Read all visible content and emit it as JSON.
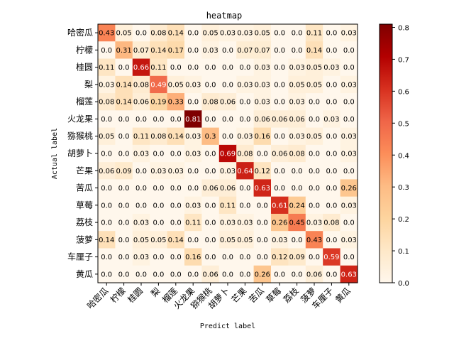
{
  "chart_data": {
    "type": "heatmap",
    "title": "heatmap",
    "xlabel": "Predict label",
    "ylabel": "Actual label",
    "categories": [
      "哈密瓜",
      "柠檬",
      "桂圆",
      "梨",
      "榴莲",
      "火龙果",
      "猕猴桃",
      "胡萝卜",
      "芒果",
      "苦瓜",
      "草莓",
      "荔枝",
      "菠萝",
      "车厘子",
      "黄瓜"
    ],
    "values": [
      [
        0.43,
        0.05,
        0.0,
        0.08,
        0.14,
        0.0,
        0.05,
        0.03,
        0.03,
        0.05,
        0.0,
        0.0,
        0.11,
        0.0,
        0.03
      ],
      [
        0.0,
        0.31,
        0.07,
        0.14,
        0.17,
        0.0,
        0.03,
        0.0,
        0.07,
        0.07,
        0.0,
        0.0,
        0.14,
        0.0,
        0.0
      ],
      [
        0.11,
        0.0,
        0.66,
        0.11,
        0.0,
        0.0,
        0.0,
        0.0,
        0.0,
        0.03,
        0.0,
        0.03,
        0.05,
        0.03,
        0.0
      ],
      [
        0.03,
        0.14,
        0.08,
        0.49,
        0.05,
        0.03,
        0.0,
        0.0,
        0.03,
        0.03,
        0.0,
        0.05,
        0.05,
        0.0,
        0.03
      ],
      [
        0.08,
        0.14,
        0.06,
        0.19,
        0.33,
        0.0,
        0.08,
        0.06,
        0.0,
        0.03,
        0.0,
        0.03,
        0.0,
        0.0,
        0.0
      ],
      [
        0.0,
        0.0,
        0.0,
        0.0,
        0.0,
        0.81,
        0.0,
        0.0,
        0.0,
        0.06,
        0.06,
        0.06,
        0.0,
        0.03,
        0.0
      ],
      [
        0.05,
        0.0,
        0.11,
        0.08,
        0.14,
        0.03,
        0.3,
        0.0,
        0.03,
        0.16,
        0.0,
        0.03,
        0.05,
        0.0,
        0.03
      ],
      [
        0.0,
        0.0,
        0.03,
        0.0,
        0.0,
        0.03,
        0.0,
        0.69,
        0.08,
        0.0,
        0.06,
        0.08,
        0.0,
        0.0,
        0.03
      ],
      [
        0.06,
        0.09,
        0.0,
        0.03,
        0.03,
        0.0,
        0.0,
        0.03,
        0.64,
        0.12,
        0.0,
        0.0,
        0.0,
        0.0,
        0.0
      ],
      [
        0.0,
        0.0,
        0.0,
        0.0,
        0.0,
        0.0,
        0.06,
        0.06,
        0.0,
        0.63,
        0.0,
        0.0,
        0.0,
        0.0,
        0.26
      ],
      [
        0.0,
        0.0,
        0.0,
        0.0,
        0.0,
        0.03,
        0.0,
        0.11,
        0.0,
        0.0,
        0.61,
        0.24,
        0.0,
        0.0,
        0.03
      ],
      [
        0.0,
        0.0,
        0.03,
        0.0,
        0.0,
        0.11,
        0.0,
        0.03,
        0.03,
        0.0,
        0.26,
        0.45,
        0.03,
        0.08,
        0.0
      ],
      [
        0.14,
        0.0,
        0.05,
        0.05,
        0.14,
        0.0,
        0.0,
        0.05,
        0.05,
        0.0,
        0.03,
        0.0,
        0.43,
        0.0,
        0.03
      ],
      [
        0.0,
        0.0,
        0.03,
        0.0,
        0.0,
        0.16,
        0.0,
        0.0,
        0.0,
        0.0,
        0.12,
        0.09,
        0.0,
        0.59,
        0.0
      ],
      [
        0.0,
        0.0,
        0.0,
        0.0,
        0.0,
        0.0,
        0.06,
        0.0,
        0.0,
        0.26,
        0.0,
        0.0,
        0.06,
        0.0,
        0.63
      ]
    ],
    "display": [
      [
        "0.43",
        "0.05",
        "0.0",
        "0.08",
        "0.14",
        "0.0",
        "0.05",
        "0.03",
        "0.03",
        "0.05",
        "0.0",
        "0.0",
        "0.11",
        "0.0",
        "0.03"
      ],
      [
        "0.0",
        "0.31",
        "0.07",
        "0.14",
        "0.17",
        "0.0",
        "0.03",
        "0.0",
        "0.07",
        "0.07",
        "0.0",
        "0.0",
        "0.14",
        "0.0",
        "0.0"
      ],
      [
        "0.11",
        "0.0",
        "0.66",
        "0.11",
        "0.0",
        "0.0",
        "0.0",
        "0.0",
        "0.0",
        "0.03",
        "0.0",
        "0.03",
        "0.05",
        "0.03",
        "0.0"
      ],
      [
        "0.03",
        "0.14",
        "0.08",
        "0.49",
        "0.05",
        "0.03",
        "0.0",
        "0.0",
        "0.03",
        "0.03",
        "0.0",
        "0.05",
        "0.05",
        "0.0",
        "0.03"
      ],
      [
        "0.08",
        "0.14",
        "0.06",
        "0.19",
        "0.33",
        "0.0",
        "0.08",
        "0.06",
        "0.0",
        "0.03",
        "0.0",
        "0.03",
        "0.0",
        "0.0",
        "0.0"
      ],
      [
        "0.0",
        "0.0",
        "0.0",
        "0.0",
        "0.0",
        "0.81",
        "0.0",
        "0.0",
        "0.0",
        "0.06",
        "0.06",
        "0.06",
        "0.0",
        "0.03",
        "0.0"
      ],
      [
        "0.05",
        "0.0",
        "0.11",
        "0.08",
        "0.14",
        "0.03",
        "0.3",
        "0.0",
        "0.03",
        "0.16",
        "0.0",
        "0.03",
        "0.05",
        "0.0",
        "0.03"
      ],
      [
        "0.0",
        "0.0",
        "0.03",
        "0.0",
        "0.0",
        "0.03",
        "0.0",
        "0.69",
        "0.08",
        "0.0",
        "0.06",
        "0.08",
        "0.0",
        "0.0",
        "0.03"
      ],
      [
        "0.06",
        "0.09",
        "0.0",
        "0.03",
        "0.03",
        "0.0",
        "0.0",
        "0.03",
        "0.64",
        "0.12",
        "0.0",
        "0.0",
        "0.0",
        "0.0",
        "0.0"
      ],
      [
        "0.0",
        "0.0",
        "0.0",
        "0.0",
        "0.0",
        "0.0",
        "0.06",
        "0.06",
        "0.0",
        "0.63",
        "0.0",
        "0.0",
        "0.0",
        "0.0",
        "0.26"
      ],
      [
        "0.0",
        "0.0",
        "0.0",
        "0.0",
        "0.0",
        "0.03",
        "0.0",
        "0.11",
        "0.0",
        "0.0",
        "0.61",
        "0.24",
        "0.0",
        "0.0",
        "0.03"
      ],
      [
        "0.0",
        "0.0",
        "0.03",
        "0.0",
        "0.0",
        "0.11",
        "0.0",
        "0.03",
        "0.03",
        "0.0",
        "0.26",
        "0.45",
        "0.03",
        "0.08",
        "0.0"
      ],
      [
        "0.14",
        "0.0",
        "0.05",
        "0.05",
        "0.14",
        "0.0",
        "0.0",
        "0.05",
        "0.05",
        "0.0",
        "0.03",
        "0.0",
        "0.43",
        "0.0",
        "0.03"
      ],
      [
        "0.0",
        "0.0",
        "0.03",
        "0.0",
        "0.0",
        "0.16",
        "0.0",
        "0.0",
        "0.0",
        "0.0",
        "0.12",
        "0.09",
        "0.0",
        "0.59",
        "0.0"
      ],
      [
        "0.0",
        "0.0",
        "0.0",
        "0.0",
        "0.0",
        "0.0",
        "0.06",
        "0.0",
        "0.0",
        "0.26",
        "0.0",
        "0.0",
        "0.06",
        "0.0",
        "0.63"
      ]
    ],
    "colormap": "OrRd",
    "colorbar": {
      "min": 0,
      "max": 0.81,
      "ticks": [
        "0.0",
        "0.1",
        "0.2",
        "0.3",
        "0.4",
        "0.5",
        "0.6",
        "0.7",
        "0.8"
      ]
    },
    "grid": false,
    "legend": "colorbar-right"
  }
}
